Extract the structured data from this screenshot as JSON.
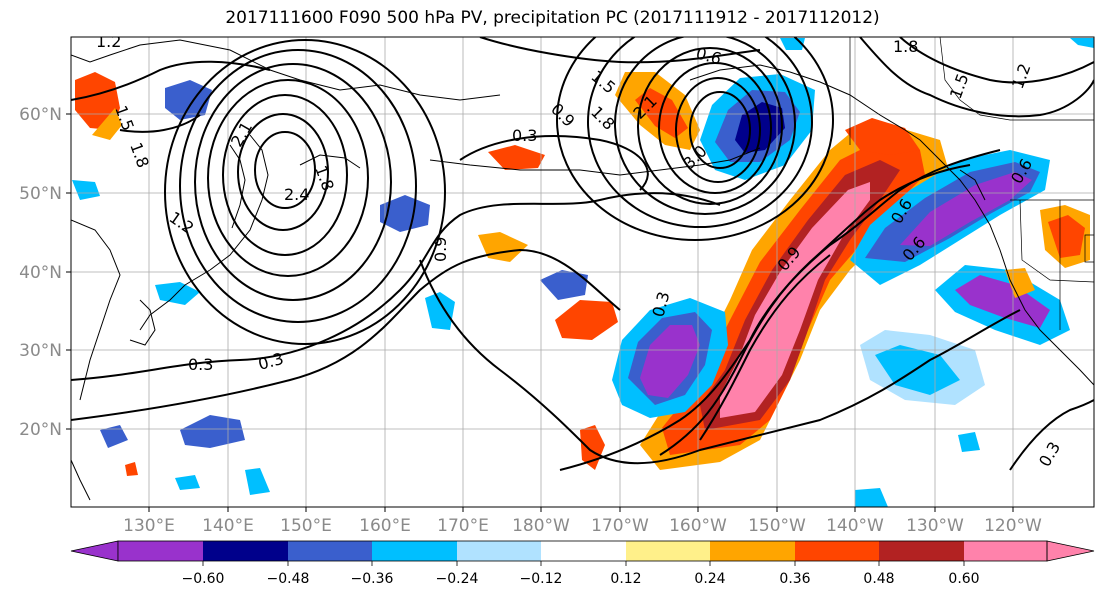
{
  "title": "2017111600 F090 500 hPa PV, precipitation PC (2017111912 - 2017112012)",
  "lon_ticks": [
    "130°E",
    "140°E",
    "150°E",
    "160°E",
    "170°E",
    "180°W",
    "170°W",
    "160°W",
    "150°W",
    "140°W",
    "130°W",
    "120°W"
  ],
  "lat_ticks": [
    "60°N",
    "50°N",
    "40°N",
    "30°N",
    "20°N"
  ],
  "colorbar": {
    "colors": [
      "#9932cc",
      "#00008b",
      "#3a5fcd",
      "#00bfff",
      "#b0e2ff",
      "#ffffff",
      "#fff08a",
      "#ffa500",
      "#ff4500",
      "#b22222",
      "#ff82ab"
    ],
    "labels": [
      "−0.60",
      "−0.48",
      "−0.36",
      "−0.24",
      "−0.12",
      "0.12",
      "0.24",
      "0.36",
      "0.48",
      "0.60"
    ]
  },
  "contour_labels": [
    "1.2",
    "1.5",
    "1.8",
    "2.1",
    "2.4",
    "0.6",
    "1.5",
    "0.9",
    "1.8",
    "2.1",
    "3.0",
    "0.3",
    "1.8",
    "1.2",
    "1.8",
    "1.5",
    "1.2",
    "0.6",
    "0.3",
    "0.3",
    "0.9",
    "0.3",
    "0.9",
    "0.6",
    "0.3",
    "0.6"
  ]
}
